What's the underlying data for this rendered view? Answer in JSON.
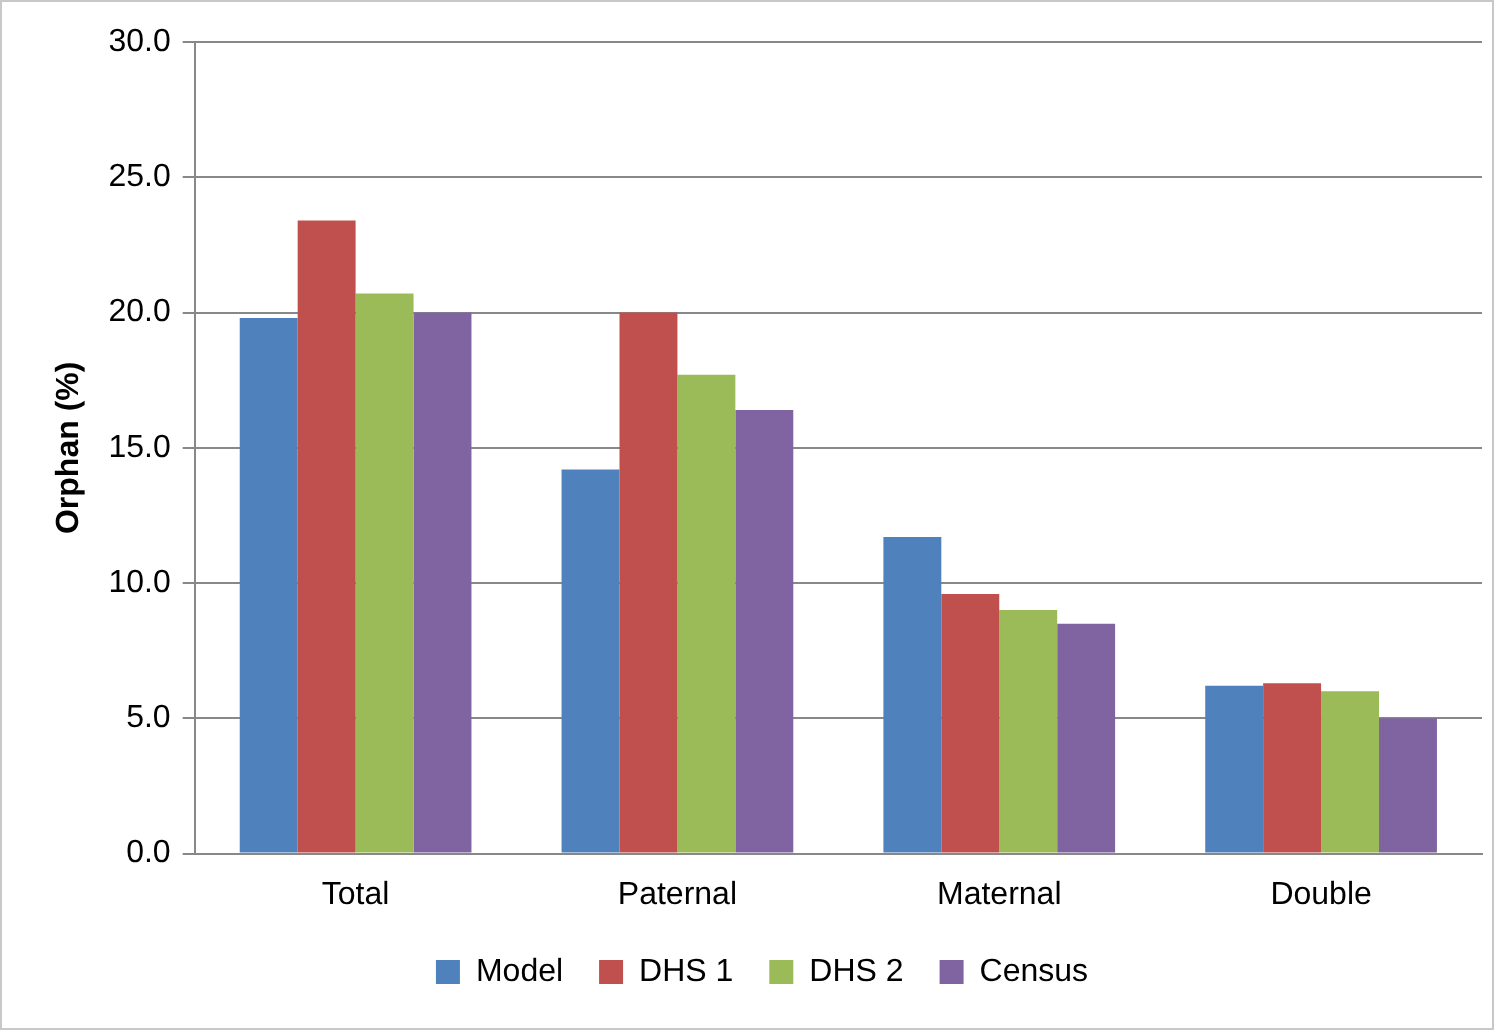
{
  "chart_data": {
    "type": "bar",
    "ylabel": "Orphan (%)",
    "categories": [
      "Total",
      "Paternal",
      "Maternal",
      "Double"
    ],
    "series": [
      {
        "name": "Model",
        "color": "#4f81bd",
        "values": [
          19.8,
          14.2,
          11.7,
          6.2
        ]
      },
      {
        "name": "DHS 1",
        "color": "#c0504d",
        "values": [
          23.4,
          20.0,
          9.6,
          6.3
        ]
      },
      {
        "name": "DHS 2",
        "color": "#9bbb59",
        "values": [
          20.7,
          17.7,
          9.0,
          6.0
        ]
      },
      {
        "name": "Census",
        "color": "#8064a2",
        "values": [
          20.0,
          16.4,
          8.5,
          5.0
        ]
      }
    ],
    "ylim": [
      0,
      30
    ],
    "yticks": [
      {
        "value": 0,
        "label": "0.0"
      },
      {
        "value": 5,
        "label": "5.0"
      },
      {
        "value": 10,
        "label": "10.0"
      },
      {
        "value": 15,
        "label": "15.0"
      },
      {
        "value": 20,
        "label": "20.0"
      },
      {
        "value": 25,
        "label": "25.0"
      },
      {
        "value": 30,
        "label": "30.0"
      }
    ],
    "grid": "y",
    "legend": "bottom"
  }
}
